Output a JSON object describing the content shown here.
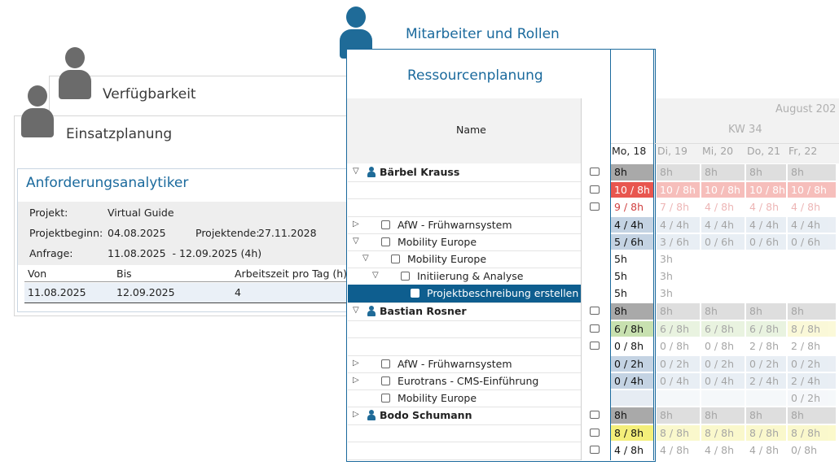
{
  "cards": {
    "mitarbeiter": "Mitarbeiter und Rollen",
    "verfuegbarkeit": "Verfügbarkeit",
    "einsatzplanung": "Einsatzplanung",
    "ressourcenplanung": "Ressourcenplanung"
  },
  "anforderung": {
    "title": "Anforderungsanalytiker",
    "projekt_label": "Projekt:",
    "projekt_value": "Virtual Guide",
    "beginn_label": "Projektbeginn:",
    "beginn_value": "04.08.2025",
    "ende_label": "Projektende:",
    "ende_value": "27.11.2028",
    "anfrage_label": "Anfrage:",
    "anfrage_value": "11.08.2025  - 12.09.2025 (4h)",
    "columns": [
      "Von",
      "Bis",
      "Arbeitszeit pro Tag (h)"
    ],
    "row": [
      "11.08.2025",
      "12.09.2025",
      "4"
    ]
  },
  "grid": {
    "name_header": "Name",
    "month": "August 202",
    "week": "KW 34",
    "days": [
      "Mo, 18",
      "Di, 19",
      "Mi, 20",
      "Do, 21",
      "Fr, 22"
    ],
    "rows": [
      {
        "name": "Bärbel Krauss",
        "bold": true,
        "tri": "▽",
        "icon": "person-icon",
        "cells": [
          "8h",
          "8h",
          "8h",
          "8h",
          "8h"
        ],
        "color": "#a9a9a9"
      },
      {
        "name": "",
        "icon": "chart-icon",
        "cells": [
          "10 / 8h",
          "10 / 8h",
          "10 / 8h",
          "10 / 8h",
          "10 / 8h"
        ],
        "color": "#e8564f",
        "text": "#ffffff"
      },
      {
        "name": "",
        "icon": "clock-icon",
        "cells": [
          "9 / 8h",
          "7 / 8h",
          "4 / 8h",
          "4 / 8h",
          "4 / 8h"
        ],
        "color": "#ffffff",
        "text": "#d04040"
      },
      {
        "name": "AfW - Frühwarnsystem",
        "tri": "▷",
        "icon": "project-icon",
        "cells": [
          "4 / 4h",
          "4 / 4h",
          "4 / 4h",
          "4 / 4h",
          "4 / 4h"
        ],
        "color": "#c4d3e3"
      },
      {
        "name": "Mobility Europe",
        "tri": "▽",
        "icon": "chart-icon",
        "cells": [
          "5 / 6h",
          "3 / 6h",
          "0 / 6h",
          "0 / 6h",
          "0 / 6h"
        ],
        "color": "#c4d3e3"
      },
      {
        "name": "Mobility Europe",
        "tri": "▽",
        "icon": "task-icon",
        "indent": 1,
        "cells": [
          "5h",
          "3h",
          "",
          "",
          ""
        ],
        "color": "#ffffff"
      },
      {
        "name": "Initiierung & Analyse",
        "tri": "▽",
        "icon": "task-icon",
        "indent": 2,
        "cells": [
          "5h",
          "3h",
          "",
          "",
          ""
        ],
        "color": "#ffffff"
      },
      {
        "name": "Projektbeschreibung erstellen",
        "icon": "task-icon",
        "indent": 3,
        "selected": true,
        "cells": [
          "5h",
          "3h",
          "",
          "",
          ""
        ],
        "color": "#ffffff"
      },
      {
        "name": "Bastian Rosner",
        "bold": true,
        "tri": "▽",
        "icon": "person-icon",
        "cells": [
          "8h",
          "8h",
          "8h",
          "8h",
          "8h"
        ],
        "color": "#a9a9a9"
      },
      {
        "name": "",
        "icon": "chart-icon",
        "cells": [
          "6 / 8h",
          "6 / 8h",
          "6 / 8h",
          "6 / 8h",
          "8 / 8h"
        ],
        "color": "#c8e1b0",
        "last": "#f4ef9a"
      },
      {
        "name": "",
        "icon": "clock-icon",
        "cells": [
          "0 / 8h",
          "0 / 8h",
          "0 / 8h",
          "2 / 8h",
          "2 / 8h"
        ],
        "color": "#ffffff"
      },
      {
        "name": "AfW - Frühwarnsystem",
        "tri": "▷",
        "icon": "project-icon",
        "cells": [
          "0 / 2h",
          "0 / 2h",
          "0 / 2h",
          "0 / 2h",
          "0 / 2h"
        ],
        "color": "#c4d3e3"
      },
      {
        "name": "Eurotrans - CMS-Einführung",
        "tri": "▷",
        "icon": "globe-icon",
        "cells": [
          "0 / 4h",
          "0 / 4h",
          "0 / 4h",
          "2 / 4h",
          "2 / 4h"
        ],
        "color": "#c4d3e3"
      },
      {
        "name": "Mobility Europe",
        "icon": "chart-icon",
        "cells": [
          "",
          "",
          "",
          "",
          "0 / 2h"
        ],
        "color": "#e6ecf3"
      },
      {
        "name": "Bodo Schumann",
        "bold": true,
        "tri": "▷",
        "icon": "person-icon",
        "cells": [
          "8h",
          "8h",
          "8h",
          "8h",
          "8h"
        ],
        "color": "#a9a9a9"
      },
      {
        "name": "",
        "icon": "chart-icon",
        "cells": [
          "8 / 8h",
          "8 / 8h",
          "8 / 8h",
          "8 / 8h",
          "8 / 8h"
        ],
        "color": "#f4ef7a"
      },
      {
        "name": "",
        "icon": "clock-icon",
        "cells": [
          "4 / 8h",
          "4 / 8h",
          "4 / 8h",
          "4 / 8h",
          "0/ 8h"
        ],
        "color": "#ffffff"
      }
    ]
  }
}
